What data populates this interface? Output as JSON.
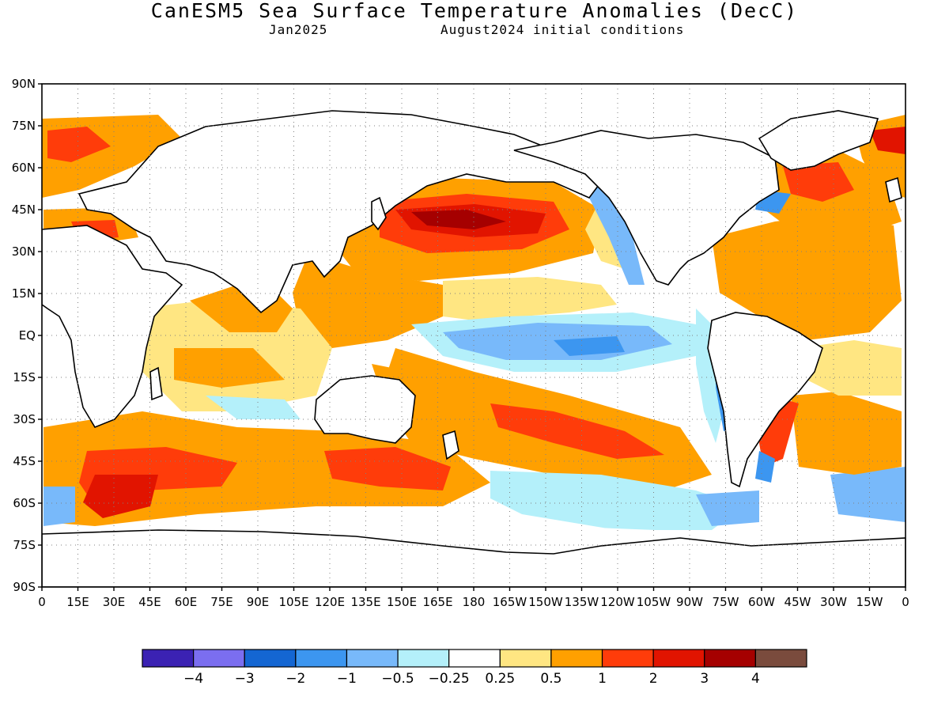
{
  "title": "CanESM5 Sea Surface Temperature Anomalies (DecC)",
  "subtitle_left": "Jan2025",
  "subtitle_right": "August2024 initial conditions",
  "y_ticks": [
    "90N",
    "75N",
    "60N",
    "45N",
    "30N",
    "15N",
    "EQ",
    "15S",
    "30S",
    "45S",
    "60S",
    "75S",
    "90S"
  ],
  "y_tick_values": [
    90,
    75,
    60,
    45,
    30,
    15,
    0,
    -15,
    -30,
    -45,
    -60,
    -75,
    -90
  ],
  "x_ticks": [
    "0",
    "15E",
    "30E",
    "45E",
    "60E",
    "75E",
    "90E",
    "105E",
    "120E",
    "135E",
    "150E",
    "165E",
    "180",
    "165W",
    "150W",
    "135W",
    "120W",
    "105W",
    "90W",
    "75W",
    "60W",
    "45W",
    "30W",
    "15W",
    "0"
  ],
  "x_tick_values": [
    0,
    15,
    30,
    45,
    60,
    75,
    90,
    105,
    120,
    135,
    150,
    165,
    180,
    195,
    210,
    225,
    240,
    255,
    270,
    285,
    300,
    315,
    330,
    345,
    360
  ],
  "colorbar": {
    "colors": [
      "#3b22b3",
      "#7b6ef0",
      "#1466d2",
      "#3c96f0",
      "#78b9fa",
      "#b4f0fa",
      "#ffffff",
      "#ffe682",
      "#ffa000",
      "#ff3c0a",
      "#e11400",
      "#a50000",
      "#7a4b3d"
    ],
    "labels": [
      "-4",
      "-3",
      "-2",
      "-1",
      "-0.5",
      "-0.25",
      "0.25",
      "0.5",
      "1",
      "2",
      "3",
      "4"
    ]
  },
  "ocean_color": "#ffffff",
  "land_outline_color": "#000000",
  "grid": "dotted"
}
